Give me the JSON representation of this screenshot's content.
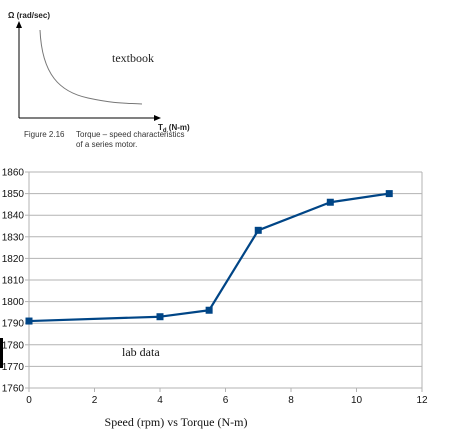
{
  "textbook_figure": {
    "y_axis_label": "Ω (rad/sec)",
    "x_axis_label_main": "T",
    "x_axis_label_sub": "d",
    "x_axis_label_unit": " (N-m)",
    "annotation": "textbook",
    "caption_number": "Figure 2.16",
    "caption_line1": "Torque – speed characteristics",
    "caption_line2": "of a series motor.",
    "curve_color": "#777777"
  },
  "chart_data": {
    "type": "line",
    "title": "",
    "annotation": "lab data",
    "xlabel": "Speed (rpm) vs Torque (N-m)",
    "ylabel": "",
    "xlim": [
      0,
      12
    ],
    "ylim": [
      1760,
      1860
    ],
    "x_ticks": [
      0,
      2,
      4,
      6,
      8,
      10,
      12
    ],
    "y_ticks": [
      1760,
      1770,
      1780,
      1790,
      1800,
      1810,
      1820,
      1830,
      1840,
      1850,
      1860
    ],
    "grid": true,
    "legend": "none",
    "series": [
      {
        "color": "#004586",
        "marker": "square",
        "x": [
          0,
          4,
          5.5,
          7,
          9.2,
          11
        ],
        "y": [
          1791,
          1793,
          1796,
          1833,
          1846,
          1850
        ]
      }
    ]
  }
}
